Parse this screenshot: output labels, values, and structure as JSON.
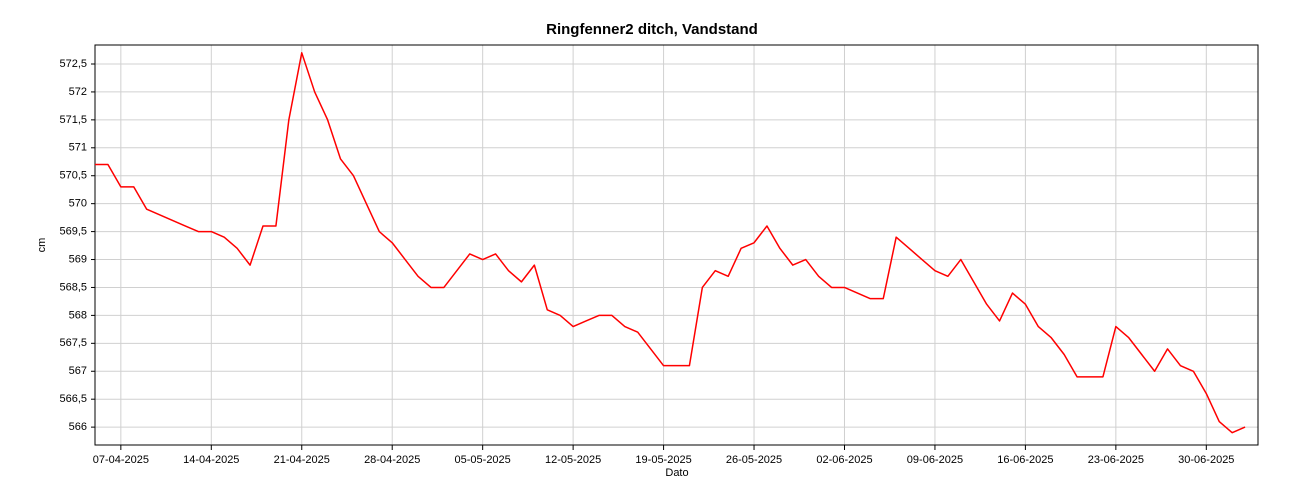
{
  "chart_data": {
    "type": "line",
    "title": "Ringfenner2 ditch, Vandstand",
    "x_label": "Dato",
    "y_label": "cm",
    "x": [
      "2025-04-05",
      "2025-04-06",
      "2025-04-07",
      "2025-04-08",
      "2025-04-09",
      "2025-04-10",
      "2025-04-11",
      "2025-04-12",
      "2025-04-13",
      "2025-04-14",
      "2025-04-15",
      "2025-04-16",
      "2025-04-17",
      "2025-04-18",
      "2025-04-19",
      "2025-04-20",
      "2025-04-21",
      "2025-04-22",
      "2025-04-23",
      "2025-04-24",
      "2025-04-25",
      "2025-04-26",
      "2025-04-27",
      "2025-04-28",
      "2025-04-29",
      "2025-04-30",
      "2025-05-01",
      "2025-05-02",
      "2025-05-03",
      "2025-05-04",
      "2025-05-05",
      "2025-05-06",
      "2025-05-07",
      "2025-05-08",
      "2025-05-09",
      "2025-05-10",
      "2025-05-11",
      "2025-05-12",
      "2025-05-13",
      "2025-05-14",
      "2025-05-15",
      "2025-05-16",
      "2025-05-17",
      "2025-05-18",
      "2025-05-19",
      "2025-05-20",
      "2025-05-21",
      "2025-05-22",
      "2025-05-23",
      "2025-05-24",
      "2025-05-25",
      "2025-05-26",
      "2025-05-27",
      "2025-05-28",
      "2025-05-29",
      "2025-05-30",
      "2025-05-31",
      "2025-06-01",
      "2025-06-02",
      "2025-06-03",
      "2025-06-04",
      "2025-06-05",
      "2025-06-06",
      "2025-06-07",
      "2025-06-08",
      "2025-06-09",
      "2025-06-10",
      "2025-06-11",
      "2025-06-12",
      "2025-06-13",
      "2025-06-14",
      "2025-06-15",
      "2025-06-16",
      "2025-06-17",
      "2025-06-18",
      "2025-06-19",
      "2025-06-20",
      "2025-06-21",
      "2025-06-22",
      "2025-06-23",
      "2025-06-24",
      "2025-06-25",
      "2025-06-26",
      "2025-06-27",
      "2025-06-28",
      "2025-06-29",
      "2025-06-30",
      "2025-07-01",
      "2025-07-02",
      "2025-07-03"
    ],
    "series": [
      {
        "name": "Vandstand",
        "color": "#ff0000",
        "values": [
          570.7,
          570.7,
          570.3,
          570.3,
          569.9,
          569.8,
          569.7,
          569.6,
          569.5,
          569.5,
          569.4,
          569.2,
          568.9,
          569.6,
          569.6,
          571.5,
          572.7,
          572.0,
          571.5,
          570.8,
          570.5,
          570.0,
          569.5,
          569.3,
          569.0,
          568.7,
          568.5,
          568.5,
          568.8,
          569.1,
          569.0,
          569.1,
          568.8,
          568.6,
          568.9,
          568.1,
          568.0,
          567.8,
          567.9,
          568.0,
          568.0,
          567.8,
          567.7,
          567.4,
          567.1,
          567.1,
          567.1,
          568.5,
          568.8,
          568.7,
          569.2,
          569.3,
          569.6,
          569.2,
          568.9,
          569.0,
          568.7,
          568.5,
          568.5,
          568.4,
          568.3,
          568.3,
          569.4,
          569.2,
          569.0,
          568.8,
          568.7,
          569.0,
          568.6,
          568.2,
          567.9,
          568.4,
          568.2,
          567.8,
          567.6,
          567.3,
          566.9,
          566.9,
          566.9,
          567.8,
          567.6,
          567.3,
          567.0,
          567.4,
          567.1,
          567.0,
          566.6,
          566.1,
          565.9,
          566.0
        ]
      }
    ],
    "xlim": [
      "2025-04-05",
      "2025-07-04"
    ],
    "xticks": [
      {
        "value": "2025-04-07",
        "label": "07-04-2025"
      },
      {
        "value": "2025-04-14",
        "label": "14-04-2025"
      },
      {
        "value": "2025-04-21",
        "label": "21-04-2025"
      },
      {
        "value": "2025-04-28",
        "label": "28-04-2025"
      },
      {
        "value": "2025-05-05",
        "label": "05-05-2025"
      },
      {
        "value": "2025-05-12",
        "label": "12-05-2025"
      },
      {
        "value": "2025-05-19",
        "label": "19-05-2025"
      },
      {
        "value": "2025-05-26",
        "label": "26-05-2025"
      },
      {
        "value": "2025-06-02",
        "label": "02-06-2025"
      },
      {
        "value": "2025-06-09",
        "label": "09-06-2025"
      },
      {
        "value": "2025-06-16",
        "label": "16-06-2025"
      },
      {
        "value": "2025-06-23",
        "label": "23-06-2025"
      },
      {
        "value": "2025-06-30",
        "label": "30-06-2025"
      }
    ],
    "ylim": [
      565.68,
      572.84
    ],
    "yticks": [
      566,
      {
        "value": 566.5,
        "label": "566,5"
      },
      567,
      {
        "value": 567.5,
        "label": "567,5"
      },
      568,
      {
        "value": 568.5,
        "label": "568,5"
      },
      569,
      {
        "value": 569.5,
        "label": "569,5"
      },
      570,
      {
        "value": 570.5,
        "label": "570,5"
      },
      571,
      {
        "value": 571.5,
        "label": "571,5"
      },
      572,
      {
        "value": 572.5,
        "label": "572,5"
      }
    ],
    "grid": true
  }
}
